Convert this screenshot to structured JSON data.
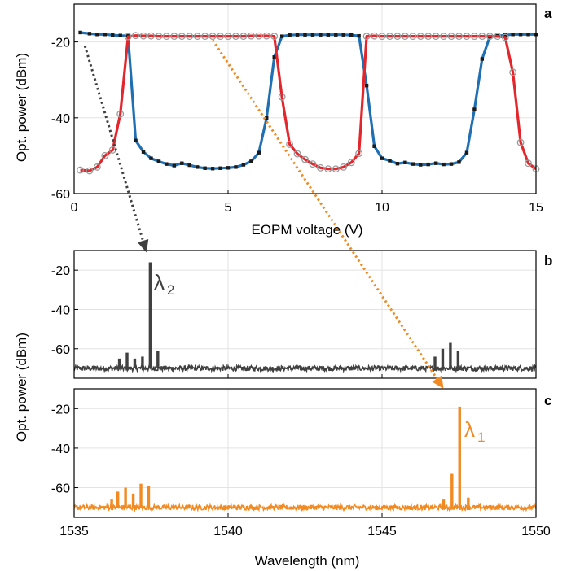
{
  "colors": {
    "blue": "#1f6fb2",
    "red": "#e3262b",
    "dark": "#404040",
    "orange": "#f28a22",
    "grid": "#e3e3e3",
    "marker_ring": "#9a9a9a"
  },
  "chart_data": [
    {
      "panel": "a",
      "type": "line",
      "xlabel": "EOPM voltage (V)",
      "ylabel": "Opt. power (dBm)",
      "xlim": [
        0,
        15
      ],
      "ylim": [
        -60,
        -10
      ],
      "xticks": [
        0,
        5,
        10,
        15
      ],
      "yticks": [
        -60,
        -40,
        -20
      ],
      "grid": true,
      "series": [
        {
          "color": "blue",
          "marker": "square",
          "x": [
            0.2,
            0.5,
            0.75,
            1.0,
            1.25,
            1.5,
            1.75,
            2.0,
            2.25,
            2.5,
            2.75,
            3.0,
            3.25,
            3.5,
            3.75,
            4.0,
            4.25,
            4.5,
            4.75,
            5.0,
            5.25,
            5.5,
            5.75,
            6.0,
            6.25,
            6.5,
            6.75,
            7.0,
            7.25,
            7.5,
            7.75,
            8.0,
            8.25,
            8.5,
            8.75,
            9.0,
            9.25,
            9.5,
            9.75,
            10.0,
            10.25,
            10.5,
            10.75,
            11.0,
            11.25,
            11.5,
            11.75,
            12.0,
            12.25,
            12.5,
            12.75,
            13.0,
            13.25,
            13.5,
            13.75,
            14.0,
            14.25,
            14.5,
            14.75,
            15.0
          ],
          "y": [
            -17.5,
            -17.8,
            -18.0,
            -18.0,
            -18.2,
            -18.3,
            -18.4,
            -46.0,
            -49.0,
            -50.7,
            -51.5,
            -52.2,
            -52.6,
            -52.0,
            -52.5,
            -53.0,
            -53.3,
            -53.4,
            -53.3,
            -53.2,
            -53.0,
            -52.4,
            -51.5,
            -49.2,
            -40.0,
            -24.0,
            -18.5,
            -18.2,
            -18.1,
            -18.1,
            -18.1,
            -18.1,
            -18.1,
            -18.1,
            -18.1,
            -18.2,
            -18.4,
            -31.5,
            -47.5,
            -50.7,
            -51.3,
            -52.1,
            -51.8,
            -52.2,
            -52.4,
            -52.3,
            -52.0,
            -52.3,
            -52.2,
            -51.7,
            -49.2,
            -37.8,
            -24.5,
            -18.6,
            -18.4,
            -18.2,
            -18.0,
            -18.0,
            -18.0,
            -18.0
          ]
        },
        {
          "color": "red",
          "marker": "circle",
          "x": [
            0.2,
            0.5,
            0.75,
            1.0,
            1.25,
            1.5,
            1.75,
            2.0,
            2.25,
            2.5,
            2.75,
            3.0,
            3.25,
            3.5,
            3.75,
            4.0,
            4.25,
            4.5,
            4.75,
            5.0,
            5.25,
            5.5,
            5.75,
            6.0,
            6.25,
            6.5,
            6.75,
            7.0,
            7.25,
            7.5,
            7.75,
            8.0,
            8.25,
            8.5,
            8.75,
            9.0,
            9.25,
            9.5,
            9.75,
            10.0,
            10.25,
            10.5,
            10.75,
            11.0,
            11.25,
            11.5,
            11.75,
            12.0,
            12.25,
            12.5,
            12.75,
            13.0,
            13.25,
            13.5,
            13.75,
            14.0,
            14.25,
            14.5,
            14.75,
            15.0
          ],
          "y": [
            -53.8,
            -54.0,
            -53.0,
            -50.0,
            -48.5,
            -39.0,
            -18.6,
            -18.3,
            -18.4,
            -18.4,
            -18.5,
            -18.5,
            -18.5,
            -18.5,
            -18.5,
            -18.5,
            -18.5,
            -18.5,
            -18.5,
            -18.5,
            -18.5,
            -18.5,
            -18.4,
            -18.4,
            -18.4,
            -18.5,
            -34.5,
            -47.0,
            -49.5,
            -51.0,
            -52.2,
            -53.2,
            -53.5,
            -53.5,
            -53.0,
            -51.8,
            -49.4,
            -18.5,
            -18.4,
            -18.5,
            -18.5,
            -18.5,
            -18.5,
            -18.5,
            -18.5,
            -18.5,
            -18.5,
            -18.5,
            -18.5,
            -18.5,
            -18.5,
            -18.5,
            -18.5,
            -18.5,
            -18.5,
            -18.8,
            -28.0,
            -46.5,
            -52.0,
            -53.5
          ]
        }
      ]
    },
    {
      "panel": "b",
      "type": "line",
      "color": "dark",
      "xlim": [
        1535,
        1550
      ],
      "ylim": [
        -75,
        -10
      ],
      "yticks": [
        -60,
        -40,
        -20
      ],
      "grid": true,
      "noise_floor": -70,
      "peaks": [
        [
          1536.47,
          -65
        ],
        [
          1536.72,
          -62
        ],
        [
          1536.97,
          -65
        ],
        [
          1537.22,
          -64
        ],
        [
          1537.47,
          -16
        ],
        [
          1537.72,
          -61
        ],
        [
          1546.72,
          -64
        ],
        [
          1546.97,
          -60
        ],
        [
          1547.22,
          -57
        ],
        [
          1547.47,
          -61
        ]
      ],
      "annotation": {
        "text": "λ",
        "sub": "2",
        "x": 1537.8,
        "y": -22
      }
    },
    {
      "panel": "c",
      "type": "line",
      "color": "orange",
      "xlabel": "Wavelength (nm)",
      "xlim": [
        1535,
        1550
      ],
      "ylim": [
        -75,
        -10
      ],
      "xticks": [
        1535,
        1540,
        1545,
        1550
      ],
      "yticks": [
        -60,
        -40,
        -20
      ],
      "grid": true,
      "noise_floor": -70,
      "peaks": [
        [
          1536.22,
          -66
        ],
        [
          1536.42,
          -62
        ],
        [
          1536.67,
          -60
        ],
        [
          1536.92,
          -63
        ],
        [
          1537.17,
          -58
        ],
        [
          1537.42,
          -59
        ],
        [
          1547.0,
          -66
        ],
        [
          1547.27,
          -53
        ],
        [
          1547.52,
          -19
        ],
        [
          1547.8,
          -65
        ]
      ],
      "annotation": {
        "text": "λ",
        "sub": "1",
        "x": 1547.9,
        "y": -25
      }
    }
  ],
  "shared_ylabel": "Opt. power (dBm)",
  "arrows": [
    {
      "color": "dark",
      "from": {
        "panel": "a",
        "x": 0.35,
        "y": -21
      },
      "to": {
        "panel": "b",
        "x": 1537.35,
        "y": -11
      }
    },
    {
      "color": "orange",
      "from": {
        "panel": "a",
        "x": 4.5,
        "y": -19.5
      },
      "to": {
        "panel": "c",
        "x": 1547.0,
        "y": -10
      }
    }
  ]
}
